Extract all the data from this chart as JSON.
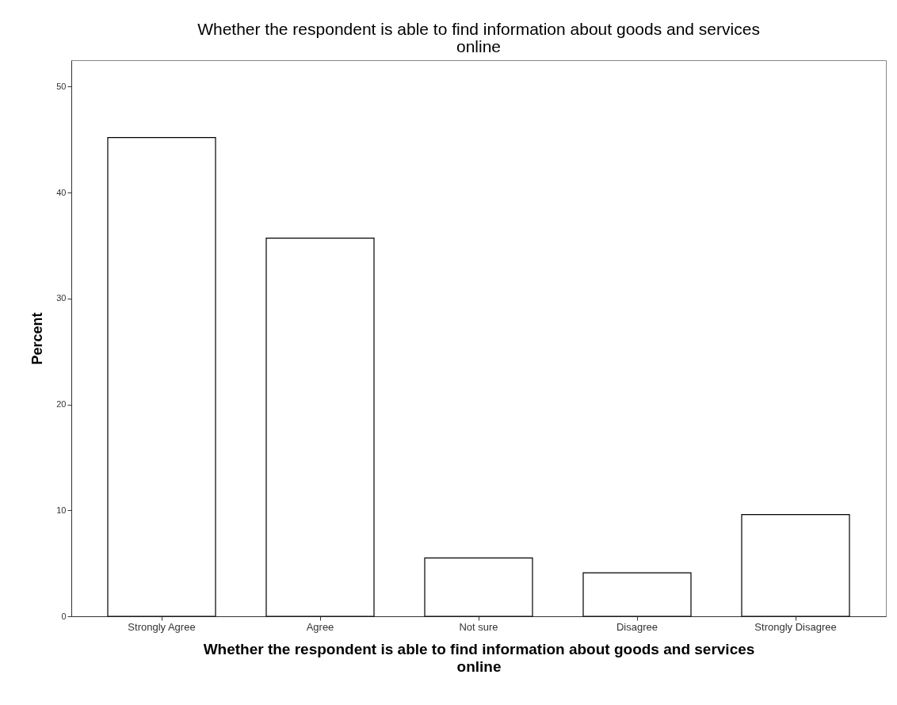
{
  "chart_data": {
    "type": "bar",
    "title": "Whether the respondent is able to find information about goods and services online",
    "xlabel": "Whether the respondent is able to find information about goods and services online",
    "ylabel": "Percent",
    "categories": [
      "Strongly Agree",
      "Agree",
      "Not sure",
      "Disagree",
      "Strongly Disagree"
    ],
    "values": [
      45.2,
      35.7,
      5.5,
      4.1,
      9.6
    ],
    "color": "#ffffff",
    "ylim": [
      0,
      52.5
    ],
    "yticks": [
      0,
      10,
      20,
      30,
      40,
      50
    ],
    "grid": false
  }
}
